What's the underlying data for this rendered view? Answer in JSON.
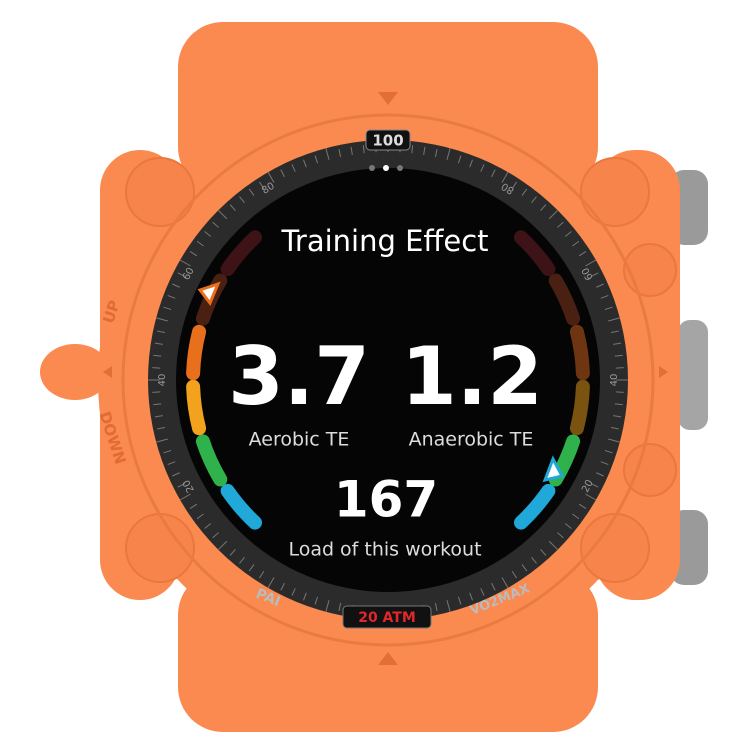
{
  "screen": {
    "title": "Training Effect",
    "aerobic": {
      "value": "3.7",
      "label": "Aerobic TE"
    },
    "anaerobic": {
      "value": "1.2",
      "label": "Anaerobic TE"
    },
    "load": {
      "value": "167",
      "label": "Load of this workout"
    }
  },
  "bezel": {
    "top": "100",
    "left_marks": [
      "80",
      "60",
      "40",
      "20"
    ],
    "right_marks": [
      "80",
      "60",
      "40",
      "20"
    ],
    "bottom_left": "PAI",
    "bottom_center": "20 ATM",
    "bottom_right": "VO2MAX"
  },
  "case": {
    "up": "UP",
    "down": "DOWN"
  }
}
